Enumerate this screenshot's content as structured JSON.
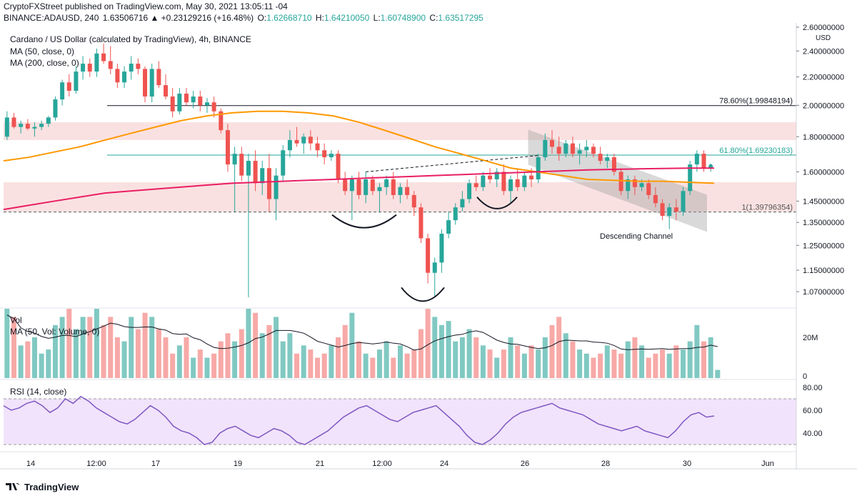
{
  "header": {
    "publisher_line": "CryptoFXStreet published on TradingView.com, May 30, 2021 13:05:11 -04",
    "symbol_line": "BINANCE:ADAUSD, 240",
    "change": "1.63506716 ▲ +0.23129216 (+16.48%)",
    "o_label": "O:",
    "o_value": "1.62668710",
    "h_label": "H:",
    "h_value": "1.64210050",
    "l_label": "L:",
    "l_value": "1.60748900",
    "c_label": "C:",
    "c_value": "1.63517295"
  },
  "legend": {
    "title": "Cardano / US Dollar (calculated by TradingView), 4h, BINANCE",
    "ma50": "MA (50, close, 0)",
    "ma200": "MA (200, close, 0)",
    "vol": "Vol",
    "vol_ma": "MA (50, Vol: Volume, 0)",
    "rsi": "RSI (14, close)"
  },
  "annotations": {
    "fib_786": "78.60%(1.99848194)",
    "fib_618": "61.80%(1.69230183)",
    "fib_1": "1(1.39796354)",
    "channel_label": "Descending Channel"
  },
  "footer": {
    "brand": "TradingView"
  },
  "colors": {
    "up": "#26a69a",
    "down": "#ef5350",
    "ma50": "#ff9800",
    "ma200": "#e91e63",
    "zone": "#f8d7d7",
    "rsi_band": "#f1e3fb",
    "channel": "#9e9e9e"
  },
  "chart_data": {
    "type": "candlestick",
    "price_axis": {
      "unit": "USD",
      "ticks": [
        2.6,
        2.4,
        2.2,
        2.0,
        1.8,
        1.6,
        1.45,
        1.35,
        1.25,
        1.15,
        1.07
      ],
      "labels": [
        "2.60000000",
        "2.40000000",
        "2.20000000",
        "2.00000000",
        "1.80000000",
        "1.60000000",
        "1.45000000",
        "1.35000000",
        "1.25000000",
        "1.15000000",
        "1.07000000"
      ],
      "scale": "log"
    },
    "x_axis": {
      "labels": [
        "14",
        "12:00",
        "17",
        "19",
        "21",
        "12:00",
        "24",
        "26",
        "28",
        "30",
        "Jun"
      ]
    },
    "candles": [
      [
        1.8,
        1.96,
        1.78,
        1.92
      ],
      [
        1.92,
        1.95,
        1.85,
        1.86
      ],
      [
        1.86,
        1.9,
        1.82,
        1.88
      ],
      [
        1.88,
        1.91,
        1.84,
        1.85
      ],
      [
        1.85,
        1.89,
        1.8,
        1.86
      ],
      [
        1.86,
        1.9,
        1.84,
        1.88
      ],
      [
        1.88,
        1.93,
        1.86,
        1.92
      ],
      [
        1.92,
        2.06,
        1.9,
        2.04
      ],
      [
        2.04,
        2.18,
        2.0,
        2.16
      ],
      [
        2.16,
        2.22,
        2.06,
        2.1
      ],
      [
        2.1,
        2.28,
        2.08,
        2.24
      ],
      [
        2.24,
        2.36,
        2.18,
        2.3
      ],
      [
        2.3,
        2.34,
        2.2,
        2.24
      ],
      [
        2.24,
        2.42,
        2.2,
        2.38
      ],
      [
        2.38,
        2.46,
        2.3,
        2.32
      ],
      [
        2.32,
        2.44,
        2.22,
        2.26
      ],
      [
        2.26,
        2.3,
        2.12,
        2.16
      ],
      [
        2.16,
        2.28,
        2.12,
        2.24
      ],
      [
        2.24,
        2.36,
        2.18,
        2.3
      ],
      [
        2.3,
        2.34,
        2.22,
        2.26
      ],
      [
        2.26,
        2.28,
        2.02,
        2.06
      ],
      [
        2.06,
        2.3,
        2.02,
        2.26
      ],
      [
        2.26,
        2.32,
        2.12,
        2.14
      ],
      [
        2.14,
        2.22,
        2.04,
        2.06
      ],
      [
        2.06,
        2.12,
        1.92,
        1.96
      ],
      [
        1.96,
        2.12,
        1.94,
        2.08
      ],
      [
        2.08,
        2.12,
        2.0,
        2.02
      ],
      [
        2.02,
        2.1,
        1.98,
        2.06
      ],
      [
        2.06,
        2.1,
        1.96,
        2.0
      ],
      [
        2.0,
        2.05,
        1.95,
        2.02
      ],
      [
        2.02,
        2.06,
        1.92,
        1.96
      ],
      [
        1.96,
        1.98,
        1.82,
        1.84
      ],
      [
        1.84,
        1.88,
        1.6,
        1.64
      ],
      [
        1.64,
        1.74,
        1.4,
        1.7
      ],
      [
        1.7,
        1.74,
        1.55,
        1.58
      ],
      [
        1.58,
        1.7,
        1.05,
        1.66
      ],
      [
        1.66,
        1.72,
        1.5,
        1.54
      ],
      [
        1.54,
        1.66,
        1.48,
        1.62
      ],
      [
        1.62,
        1.7,
        1.4,
        1.46
      ],
      [
        1.46,
        1.62,
        1.36,
        1.58
      ],
      [
        1.58,
        1.75,
        1.55,
        1.72
      ],
      [
        1.72,
        1.84,
        1.68,
        1.78
      ],
      [
        1.78,
        1.86,
        1.74,
        1.76
      ],
      [
        1.76,
        1.82,
        1.7,
        1.8
      ],
      [
        1.8,
        1.84,
        1.72,
        1.76
      ],
      [
        1.76,
        1.8,
        1.68,
        1.72
      ],
      [
        1.72,
        1.76,
        1.64,
        1.68
      ],
      [
        1.68,
        1.72,
        1.66,
        1.7
      ],
      [
        1.7,
        1.72,
        1.54,
        1.56
      ],
      [
        1.56,
        1.6,
        1.48,
        1.5
      ],
      [
        1.5,
        1.58,
        1.36,
        1.56
      ],
      [
        1.56,
        1.6,
        1.46,
        1.48
      ],
      [
        1.48,
        1.6,
        1.44,
        1.56
      ],
      [
        1.56,
        1.58,
        1.48,
        1.5
      ],
      [
        1.5,
        1.54,
        1.4,
        1.52
      ],
      [
        1.52,
        1.58,
        1.48,
        1.56
      ],
      [
        1.56,
        1.6,
        1.46,
        1.48
      ],
      [
        1.48,
        1.54,
        1.44,
        1.52
      ],
      [
        1.52,
        1.56,
        1.46,
        1.48
      ],
      [
        1.48,
        1.5,
        1.38,
        1.42
      ],
      [
        1.42,
        1.44,
        1.26,
        1.28
      ],
      [
        1.28,
        1.3,
        1.1,
        1.14
      ],
      [
        1.14,
        1.2,
        1.05,
        1.18
      ],
      [
        1.18,
        1.32,
        1.14,
        1.3
      ],
      [
        1.3,
        1.4,
        1.28,
        1.36
      ],
      [
        1.36,
        1.44,
        1.34,
        1.42
      ],
      [
        1.42,
        1.5,
        1.4,
        1.46
      ],
      [
        1.46,
        1.56,
        1.44,
        1.54
      ],
      [
        1.54,
        1.58,
        1.5,
        1.52
      ],
      [
        1.52,
        1.6,
        1.5,
        1.58
      ],
      [
        1.58,
        1.62,
        1.54,
        1.56
      ],
      [
        1.56,
        1.62,
        1.52,
        1.6
      ],
      [
        1.6,
        1.64,
        1.48,
        1.5
      ],
      [
        1.5,
        1.58,
        1.44,
        1.56
      ],
      [
        1.56,
        1.62,
        1.5,
        1.52
      ],
      [
        1.52,
        1.6,
        1.5,
        1.58
      ],
      [
        1.58,
        1.62,
        1.52,
        1.56
      ],
      [
        1.56,
        1.7,
        1.54,
        1.68
      ],
      [
        1.68,
        1.82,
        1.66,
        1.78
      ],
      [
        1.78,
        1.84,
        1.7,
        1.74
      ],
      [
        1.74,
        1.8,
        1.66,
        1.7
      ],
      [
        1.7,
        1.78,
        1.68,
        1.76
      ],
      [
        1.76,
        1.8,
        1.68,
        1.7
      ],
      [
        1.7,
        1.76,
        1.64,
        1.72
      ],
      [
        1.72,
        1.78,
        1.68,
        1.74
      ],
      [
        1.74,
        1.76,
        1.68,
        1.7
      ],
      [
        1.7,
        1.74,
        1.64,
        1.66
      ],
      [
        1.66,
        1.7,
        1.62,
        1.68
      ],
      [
        1.68,
        1.7,
        1.58,
        1.6
      ],
      [
        1.6,
        1.62,
        1.48,
        1.5
      ],
      [
        1.5,
        1.58,
        1.46,
        1.56
      ],
      [
        1.56,
        1.58,
        1.48,
        1.52
      ],
      [
        1.52,
        1.56,
        1.5,
        1.54
      ],
      [
        1.54,
        1.56,
        1.46,
        1.48
      ],
      [
        1.48,
        1.52,
        1.42,
        1.44
      ],
      [
        1.44,
        1.46,
        1.36,
        1.38
      ],
      [
        1.38,
        1.44,
        1.32,
        1.42
      ],
      [
        1.42,
        1.46,
        1.36,
        1.4
      ],
      [
        1.4,
        1.52,
        1.38,
        1.5
      ],
      [
        1.5,
        1.66,
        1.48,
        1.64
      ],
      [
        1.64,
        1.72,
        1.6,
        1.7
      ],
      [
        1.7,
        1.72,
        1.6,
        1.62
      ],
      [
        1.62,
        1.64,
        1.6,
        1.635
      ]
    ],
    "ma50": [
      1.66,
      1.68,
      1.71,
      1.74,
      1.78,
      1.82,
      1.86,
      1.9,
      1.93,
      1.95,
      1.96,
      1.96,
      1.95,
      1.93,
      1.89,
      1.84,
      1.79,
      1.74,
      1.7,
      1.66,
      1.62,
      1.6,
      1.58,
      1.56,
      1.555,
      1.55,
      1.55,
      1.545,
      1.54
    ],
    "ma200": [
      1.41,
      1.43,
      1.45,
      1.47,
      1.49,
      1.5,
      1.51,
      1.52,
      1.53,
      1.54,
      1.545,
      1.55,
      1.555,
      1.56,
      1.565,
      1.57,
      1.575,
      1.58,
      1.585,
      1.59,
      1.595,
      1.6,
      1.605,
      1.61,
      1.613,
      1.616,
      1.618,
      1.62,
      1.62
    ],
    "volume": {
      "axis_labels": [
        "20M",
        "0"
      ],
      "ma_label": "MA (50, Vol: Volume, 0)",
      "bars": [
        34,
        30,
        16,
        18,
        20,
        12,
        14,
        26,
        30,
        34,
        24,
        30,
        30,
        34,
        26,
        30,
        20,
        18,
        30,
        24,
        32,
        30,
        24,
        20,
        12,
        16,
        20,
        10,
        14,
        10,
        12,
        18,
        22,
        18,
        24,
        34,
        32,
        22,
        26,
        30,
        18,
        22,
        12,
        16,
        14,
        10,
        12,
        16,
        20,
        26,
        32,
        18,
        12,
        10,
        14,
        18,
        10,
        16,
        12,
        14,
        24,
        34,
        30,
        26,
        28,
        18,
        20,
        24,
        20,
        16,
        14,
        10,
        14,
        20,
        16,
        12,
        16,
        14,
        20,
        26,
        30,
        22,
        18,
        14,
        12,
        10,
        12,
        16,
        14,
        12,
        18,
        20,
        16,
        10,
        12,
        14,
        12,
        16,
        14,
        18,
        26,
        18,
        20,
        4
      ]
    },
    "rsi": {
      "axis_labels": [
        "80.00",
        "60.00",
        "40.00"
      ],
      "band": [
        30,
        70
      ],
      "values": [
        64,
        60,
        62,
        66,
        68,
        64,
        58,
        62,
        70,
        66,
        72,
        68,
        62,
        58,
        54,
        50,
        48,
        52,
        58,
        64,
        60,
        54,
        46,
        42,
        40,
        36,
        30,
        32,
        40,
        44,
        46,
        42,
        38,
        36,
        40,
        44,
        42,
        38,
        32,
        30,
        34,
        38,
        42,
        48,
        54,
        58,
        62,
        64,
        60,
        56,
        52,
        50,
        54,
        58,
        60,
        62,
        64,
        58,
        52,
        46,
        38,
        32,
        30,
        34,
        40,
        48,
        54,
        58,
        60,
        62,
        64,
        66,
        62,
        60,
        58,
        56,
        52,
        48,
        46,
        44,
        42,
        44,
        46,
        42,
        40,
        38,
        36,
        42,
        50,
        56,
        58,
        54,
        55
      ]
    }
  }
}
